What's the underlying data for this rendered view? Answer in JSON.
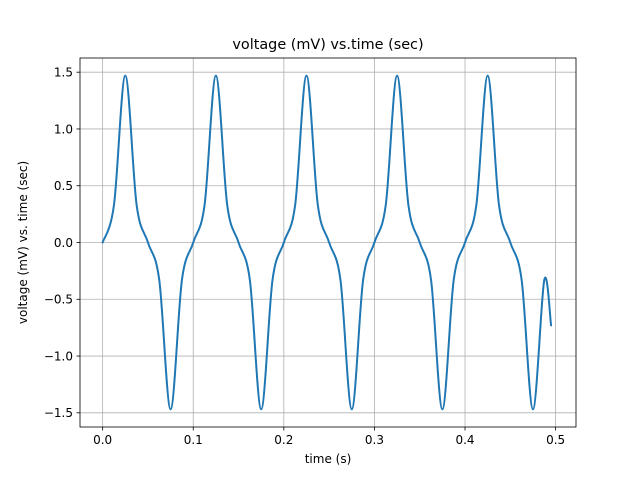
{
  "chart_data": {
    "type": "line",
    "title": "voltage (mV) vs.time (sec)",
    "xlabel": "time (s)",
    "ylabel": "voltage (mV) vs. time (sec)",
    "xlim": [
      -0.025,
      0.5225
    ],
    "ylim": [
      -1.625,
      1.625
    ],
    "xticks": [
      0.0,
      0.1,
      0.2,
      0.3,
      0.4,
      0.5
    ],
    "xtick_labels": [
      "0.0",
      "0.1",
      "0.2",
      "0.3",
      "0.4",
      "0.5"
    ],
    "yticks": [
      -1.5,
      -1.0,
      -0.5,
      0.0,
      0.5,
      1.0,
      1.5
    ],
    "ytick_labels": [
      "−1.5",
      "−1.0",
      "−0.5",
      "0.0",
      "0.5",
      "1.0",
      "1.5"
    ],
    "grid": true,
    "series": [
      {
        "color": "#1f77b4",
        "x": [
          0.0,
          0.0125,
          0.025,
          0.0375,
          0.05,
          0.0625,
          0.075,
          0.0875,
          0.1,
          0.1125,
          0.125,
          0.1375,
          0.15,
          0.1625,
          0.175,
          0.1875,
          0.2,
          0.2125,
          0.225,
          0.2375,
          0.25,
          0.2625,
          0.275,
          0.2875,
          0.3,
          0.3125,
          0.325,
          0.3375,
          0.35,
          0.3625,
          0.375,
          0.3875,
          0.4,
          0.4125,
          0.425,
          0.4375,
          0.45,
          0.4625,
          0.475,
          0.4875,
          0.495
        ],
        "y": [
          0.0,
          0.33,
          1.47,
          0.33,
          0.0,
          -0.33,
          -1.47,
          -0.33,
          0.0,
          0.33,
          1.47,
          0.33,
          0.0,
          -0.33,
          -1.47,
          -0.33,
          0.0,
          0.33,
          1.47,
          0.33,
          0.0,
          -0.33,
          -1.47,
          -0.33,
          0.0,
          0.33,
          1.47,
          0.33,
          0.0,
          -0.33,
          -1.47,
          -0.33,
          0.0,
          0.33,
          1.47,
          0.33,
          0.0,
          -0.33,
          -1.47,
          -0.33,
          -0.73
        ]
      }
    ]
  }
}
